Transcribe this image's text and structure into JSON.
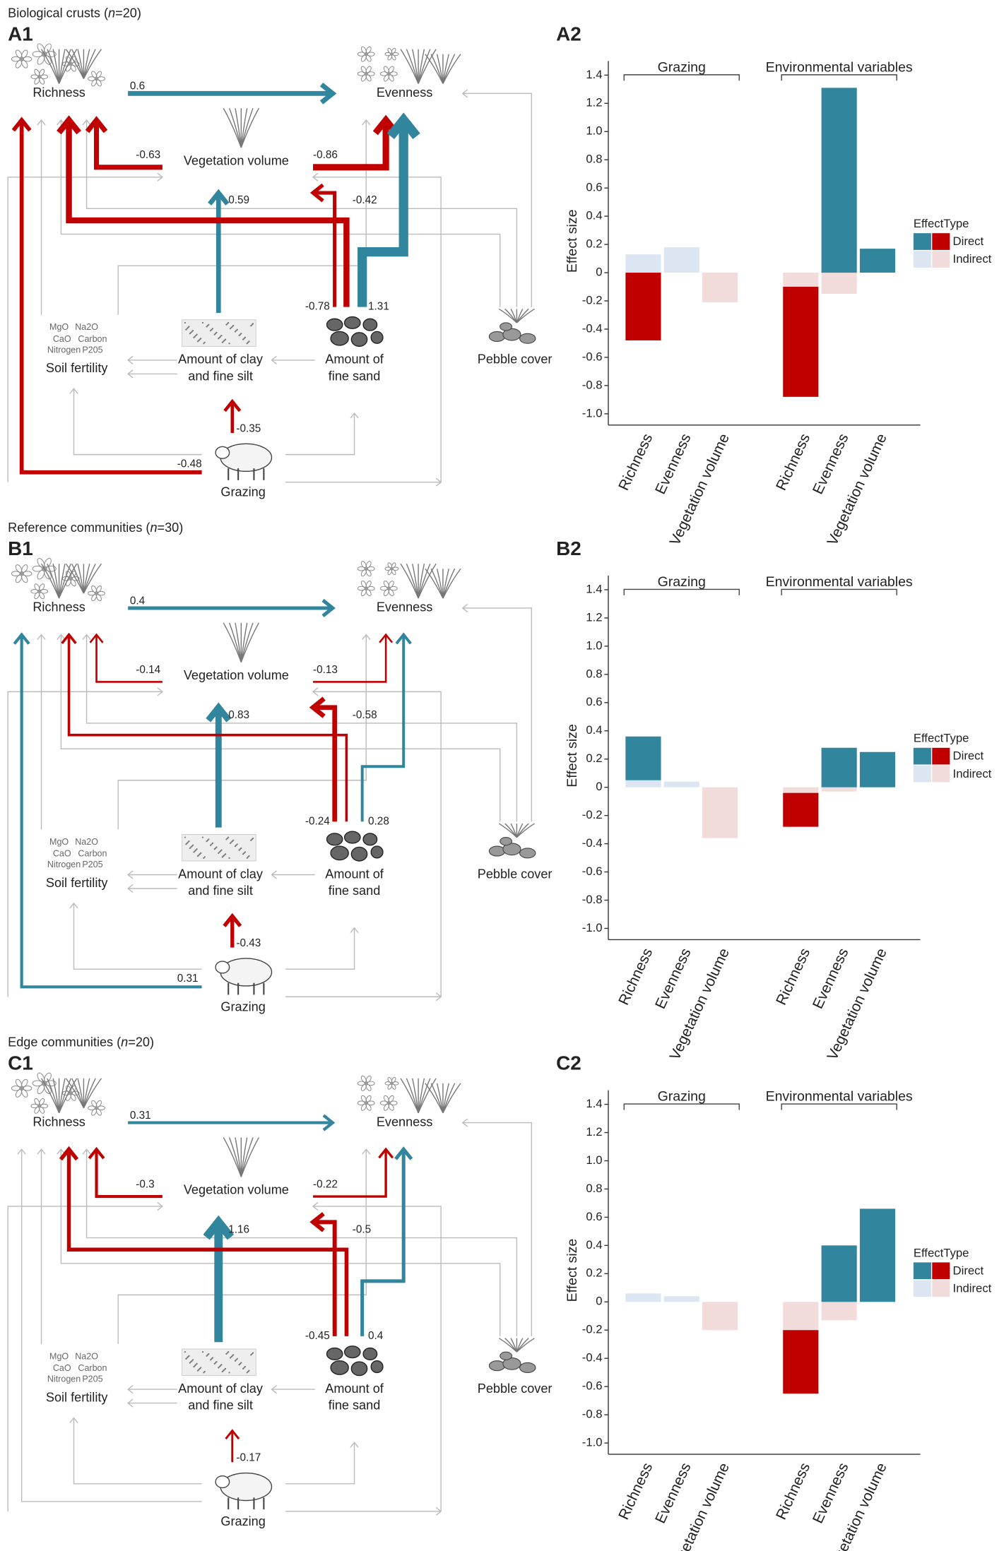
{
  "nodes": {
    "richness": "Richness",
    "evenness": "Evenness",
    "vegetation": "Vegetation volume",
    "soil": "Soil fertility",
    "soil_items": [
      "MgO",
      "Na2O",
      "CaO",
      "Carbon",
      "Nitrogen",
      "P205"
    ],
    "clay": [
      "Amount of clay",
      "and fine silt"
    ],
    "sand": [
      "Amount of",
      "fine sand"
    ],
    "pebble": "Pebble cover",
    "grazing": "Grazing"
  },
  "path_colors": {
    "positive": "#31859c",
    "negative": "#c00000"
  },
  "panels": [
    {
      "title": {
        "prefix": "Biological crusts (",
        "italic": "n",
        "suffix": "=20)"
      },
      "label": "A1",
      "paths": {
        "richness_evenness": 0.6,
        "veg_richness": -0.63,
        "veg_evenness": -0.86,
        "clay_veg": 0.59,
        "sand_veg": -0.42,
        "sand_richness": -0.78,
        "sand_evenness": 1.31,
        "grazing_clay": -0.35,
        "grazing_richness": -0.48
      }
    },
    {
      "title": {
        "prefix": "Reference communities (",
        "italic": "n",
        "suffix": "=30)"
      },
      "label": "B1",
      "paths": {
        "richness_evenness": 0.4,
        "veg_richness": -0.14,
        "veg_evenness": -0.13,
        "clay_veg": 0.83,
        "sand_veg": -0.58,
        "sand_richness": -0.24,
        "sand_evenness": 0.28,
        "grazing_clay": -0.43,
        "grazing_richness": 0.31
      }
    },
    {
      "title": {
        "prefix": "Edge communities (",
        "italic": "n",
        "suffix": "=20)"
      },
      "label": "C1",
      "paths": {
        "richness_evenness": 0.31,
        "veg_richness": -0.3,
        "veg_evenness": -0.22,
        "clay_veg": 1.16,
        "sand_veg": -0.5,
        "sand_richness": -0.45,
        "sand_evenness": 0.4,
        "grazing_clay": -0.17
      }
    }
  ],
  "chart_data": [
    {
      "type": "bar",
      "label": "A2",
      "ylabel": "Effect size",
      "legend_title": "EffectType",
      "groups": [
        "Grazing",
        "Environmental variables"
      ],
      "categories": [
        "Richness",
        "Evenness",
        "Vegetation volume",
        "Richness",
        "Evenness",
        "Vegetation volume"
      ],
      "series": [
        {
          "name": "Direct",
          "colors": {
            "positive": "#31859c",
            "negative": "#c00000"
          },
          "values": [
            -0.48,
            null,
            null,
            -0.78,
            1.31,
            0.17
          ]
        },
        {
          "name": "Indirect",
          "colors": {
            "positive": "#dce6f2",
            "negative": "#f2dcdb"
          },
          "values": [
            0.13,
            0.18,
            -0.21,
            -0.1,
            -0.15,
            null
          ]
        }
      ],
      "ylim": [
        -1.08,
        1.5
      ],
      "yticks": [
        1.4,
        1.2,
        {
          "value": 1,
          "label": "1.0"
        },
        0.8,
        0.6,
        0.4,
        0.2,
        0,
        -0.2,
        -0.4,
        -0.6,
        -0.8,
        {
          "value": -1,
          "label": "-1.0"
        }
      ]
    },
    {
      "type": "bar",
      "label": "B2",
      "ylabel": "Effect size",
      "legend_title": "EffectType",
      "groups": [
        "Grazing",
        "Environmental variables"
      ],
      "categories": [
        "Richness",
        "Evenness",
        "Vegetation volume",
        "Richness",
        "Evenness",
        "Vegetation volume"
      ],
      "series": [
        {
          "name": "Direct",
          "colors": {
            "positive": "#31859c",
            "negative": "#c00000"
          },
          "values": [
            0.31,
            null,
            null,
            -0.24,
            0.28,
            0.25
          ]
        },
        {
          "name": "Indirect",
          "colors": {
            "positive": "#dce6f2",
            "negative": "#f2dcdb"
          },
          "values": [
            0.05,
            0.04,
            -0.36,
            -0.04,
            -0.03,
            null
          ]
        }
      ],
      "ylim": [
        -1.08,
        1.5
      ],
      "yticks": [
        1.4,
        1.2,
        {
          "value": 1,
          "label": "1.0"
        },
        0.8,
        0.6,
        0.4,
        0.2,
        0,
        -0.2,
        -0.4,
        -0.6,
        -0.8,
        {
          "value": -1,
          "label": "-1.0"
        }
      ]
    },
    {
      "type": "bar",
      "label": "C2",
      "ylabel": "Effect size",
      "legend_title": "EffectType",
      "groups": [
        "Grazing",
        "Environmental variables"
      ],
      "categories": [
        "Richness",
        "Evenness",
        "Vegetation volume",
        "Richness",
        "Evenness",
        "Vegetation volume"
      ],
      "series": [
        {
          "name": "Direct",
          "colors": {
            "positive": "#31859c",
            "negative": "#c00000"
          },
          "values": [
            null,
            null,
            null,
            -0.45,
            0.4,
            0.66
          ]
        },
        {
          "name": "Indirect",
          "colors": {
            "positive": "#dce6f2",
            "negative": "#f2dcdb"
          },
          "values": [
            0.06,
            0.04,
            -0.2,
            -0.2,
            -0.13,
            null
          ]
        }
      ],
      "ylim": [
        -1.08,
        1.5
      ],
      "yticks": [
        1.4,
        1.2,
        {
          "value": 1,
          "label": "1.0"
        },
        0.8,
        0.6,
        0.4,
        0.2,
        0,
        -0.2,
        -0.4,
        -0.6,
        -0.8,
        {
          "value": -1,
          "label": "-1.0"
        }
      ]
    }
  ]
}
